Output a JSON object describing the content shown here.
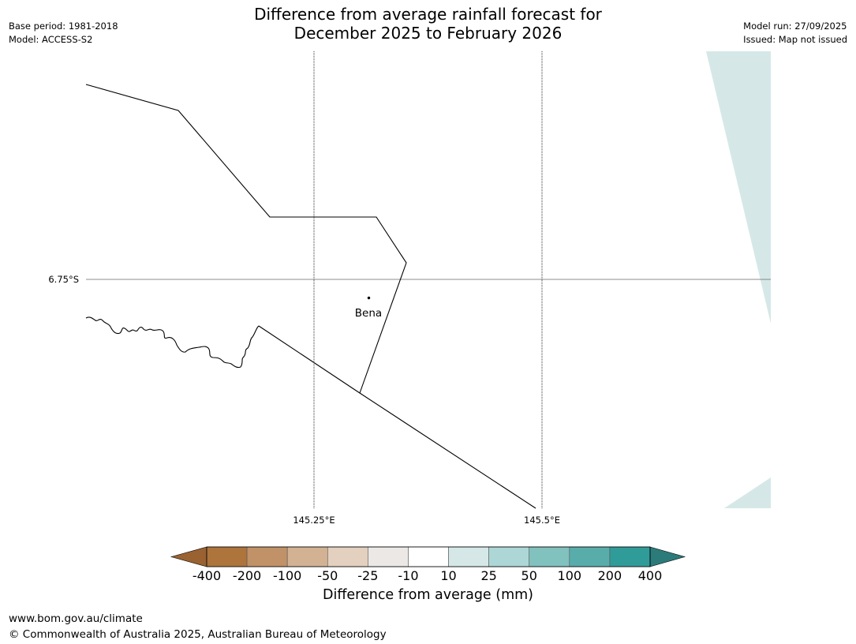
{
  "header": {
    "base_period": "Base period: 1981-2018",
    "model": "Model: ACCESS-S2",
    "title_line1": "Difference from average rainfall forecast for",
    "title_line2": "December 2025 to February 2026",
    "model_run": "Model run: 27/09/2025",
    "issued": "Issued: Map not issued"
  },
  "map": {
    "latitude_label": "6.75°S",
    "longitude_labels": [
      "145.25°E",
      "145.5°E"
    ],
    "place": {
      "name": "Bena"
    }
  },
  "legend": {
    "title": "Difference from average (mm)",
    "ticks": [
      "-400",
      "-200",
      "-100",
      "-50",
      "-25",
      "-10",
      "10",
      "25",
      "50",
      "100",
      "200",
      "400"
    ],
    "colors": [
      "#9a6231",
      "#ad743c",
      "#c19268",
      "#d3b293",
      "#e3d0bf",
      "#ebe8e6",
      "#ffffff",
      "#d5e8e7",
      "#acd7d6",
      "#81c1be",
      "#58adab",
      "#309c99",
      "#2b7b7a"
    ]
  },
  "footer": {
    "url": "www.bom.gov.au/climate",
    "copyright": "© Commonwealth of Australia 2025, Australian Bureau of Meteorology"
  }
}
